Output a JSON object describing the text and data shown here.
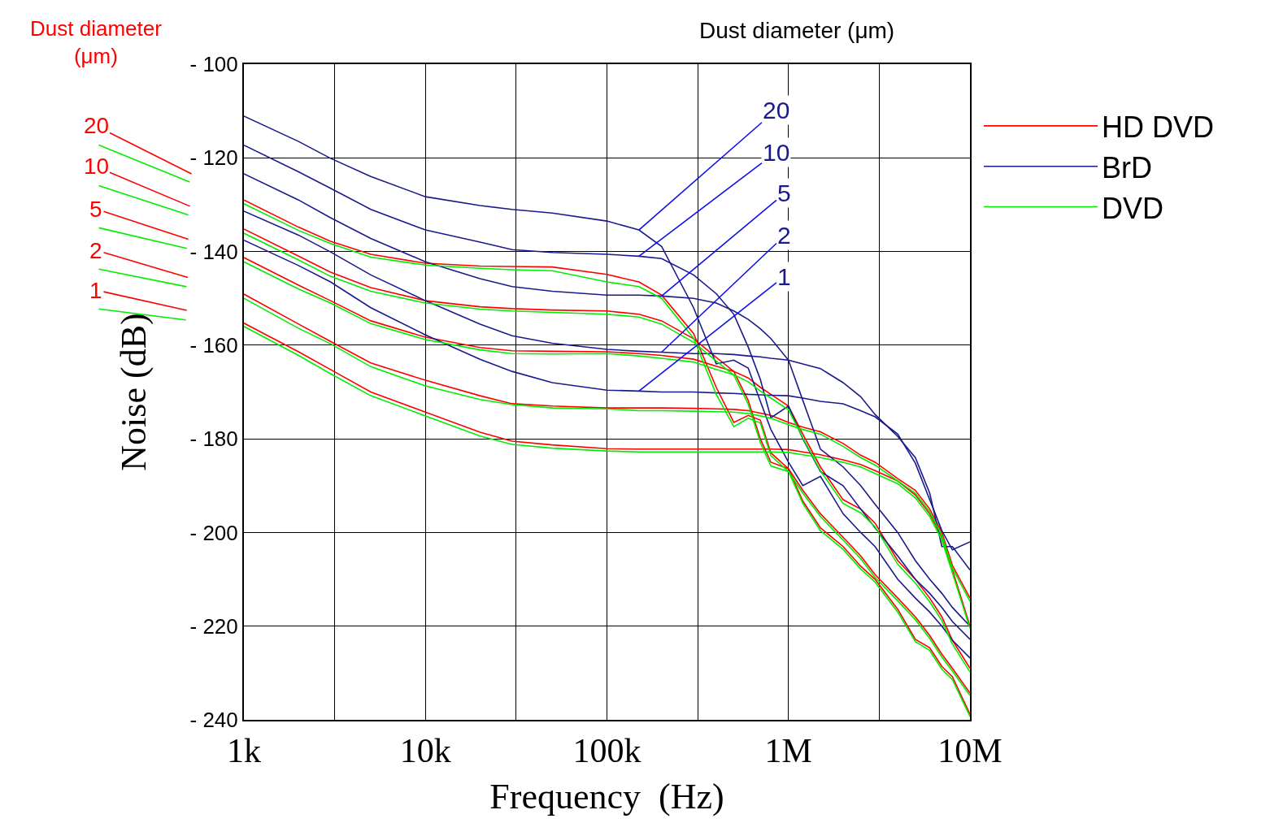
{
  "chart_data": {
    "type": "line",
    "xlabel": "Frequency  (Hz)",
    "ylabel": "Noise (dB)",
    "log": "x",
    "grid": true,
    "legend": "top right",
    "marker": "none",
    "line_style": "solid",
    "xlim": [
      1000,
      10000000
    ],
    "xticks": [
      {
        "value": 1000,
        "label": "1k"
      },
      {
        "value": 3162,
        "label": null
      },
      {
        "value": 10000,
        "label": "10k"
      },
      {
        "value": 31623,
        "label": null
      },
      {
        "value": 100000,
        "label": "100k"
      },
      {
        "value": 316228,
        "label": null
      },
      {
        "value": 1000000,
        "label": "1M"
      },
      {
        "value": 3162278,
        "label": null
      },
      {
        "value": 10000000,
        "label": "10M"
      }
    ],
    "ylim": [
      -240,
      -100
    ],
    "yticks": [
      {
        "value": -100,
        "label": "- 100"
      },
      {
        "value": -120,
        "label": "- 120"
      },
      {
        "value": -140,
        "label": "- 140"
      },
      {
        "value": -160,
        "label": "- 160"
      },
      {
        "value": -180,
        "label": "- 180"
      },
      {
        "value": -200,
        "label": "- 200"
      },
      {
        "value": -220,
        "label": "- 220"
      },
      {
        "value": -240,
        "label": "- 240"
      }
    ],
    "x": [
      1000,
      2000,
      3000,
      5000,
      10000,
      20000,
      30000,
      50000,
      100000,
      150000,
      200000,
      300000,
      400000,
      500000,
      600000,
      700000,
      800000,
      1000000,
      1200000,
      1500000,
      2000000,
      2500000,
      3000000,
      4000000,
      5000000,
      6000000,
      7000000,
      8000000,
      10000000
    ],
    "series": [
      {
        "name": "HD DVD",
        "color": "#ff0000",
        "values": [
          -129.0,
          -134.8,
          -137.8,
          -140.6,
          -142.5,
          -143.1,
          -143.2,
          -143.3,
          -144.9,
          -146.5,
          -149.3,
          -157.5,
          -169,
          -176.5,
          -175,
          -176,
          -183,
          -186.4,
          -193.3,
          -199,
          -203,
          -207.2,
          -210,
          -216.4,
          -222.8,
          -224.6,
          -228.6,
          -230.8,
          -238.8
        ]
      },
      {
        "color": "#ff0000",
        "values": [
          -135.2,
          -141.0,
          -144.4,
          -147.7,
          -150.5,
          -151.8,
          -152.2,
          -152.5,
          -152.7,
          -153.4,
          -154.8,
          -158.6,
          -162.6,
          -165.6,
          -171.8,
          -180,
          -185,
          -186.4,
          -191,
          -196,
          -201,
          -205,
          -209,
          -214,
          -218,
          -222,
          -226,
          -229,
          -234.3
        ]
      },
      {
        "color": "#ff0000",
        "values": [
          -141.3,
          -147.2,
          -150.5,
          -154.8,
          -158.3,
          -160.5,
          -161.2,
          -161.3,
          -161.4,
          -161.8,
          -162.2,
          -163,
          -164.5,
          -165.6,
          -167,
          -169,
          -170.5,
          -173,
          -179,
          -186,
          -193,
          -195,
          -198,
          -206,
          -210,
          -214,
          -218,
          -223,
          -229
        ]
      },
      {
        "color": "#ff0000",
        "values": [
          -149.1,
          -155.5,
          -159.2,
          -163.8,
          -167.5,
          -170.8,
          -172.5,
          -173.0,
          -173.4,
          -173.4,
          -173.4,
          -173.5,
          -173.6,
          -173.7,
          -174,
          -174.5,
          -175,
          -176.5,
          -177.5,
          -178.5,
          -181,
          -183.5,
          -185,
          -188.5,
          -191,
          -195,
          -200,
          -207,
          -214
        ]
      },
      {
        "color": "#ff0000",
        "values": [
          -155.3,
          -161.4,
          -165.2,
          -170,
          -174.3,
          -178.6,
          -180.5,
          -181.3,
          -182.1,
          -182.2,
          -182.2,
          -182.2,
          -182.2,
          -182.2,
          -182.2,
          -182.2,
          -182.2,
          -182.3,
          -182.8,
          -183.4,
          -184.5,
          -185.5,
          -186.8,
          -189,
          -192,
          -196,
          -201,
          -208,
          -220
        ]
      },
      {
        "name": "BrD",
        "color": "#1a1a8c",
        "values": [
          -111.1,
          -116.5,
          -120.1,
          -124,
          -128.3,
          -130.2,
          -131,
          -131.8,
          -133.5,
          -135.4,
          -138.9,
          -152,
          -164,
          -163.2,
          -164.9,
          -172,
          -178,
          -185,
          -190,
          -188,
          -196,
          -200,
          -203,
          -210,
          -214,
          -217,
          -220,
          -223,
          -226.8
        ]
      },
      {
        "color": "#1a1a8c",
        "values": [
          -117.3,
          -123,
          -126.5,
          -131,
          -135.4,
          -138,
          -139.6,
          -140.2,
          -140.6,
          -141,
          -141.5,
          -145,
          -149,
          -153.4,
          -160.4,
          -167.3,
          -175.5,
          -173,
          -180,
          -187,
          -190,
          -195,
          -199,
          -205,
          -210,
          -213,
          -216,
          -219,
          -222.8
        ]
      },
      {
        "color": "#1a1a8c",
        "values": [
          -123.4,
          -129,
          -132.8,
          -137.2,
          -142.2,
          -145.8,
          -147.5,
          -148.5,
          -149.3,
          -149.3,
          -149.5,
          -150,
          -151,
          -152.7,
          -154.5,
          -156.5,
          -158.6,
          -163.2,
          -171.8,
          -182.2,
          -186,
          -190,
          -194,
          -200,
          -206,
          -210,
          -213,
          -216,
          -220
        ]
      },
      {
        "color": "#1a1a8c",
        "values": [
          -131.4,
          -136.5,
          -140.1,
          -145,
          -150.5,
          -155.5,
          -158,
          -159.6,
          -160.9,
          -161.3,
          -161.5,
          -161.8,
          -161.8,
          -162,
          -162.3,
          -162.5,
          -162.8,
          -163.2,
          -164,
          -165,
          -168,
          -171,
          -174.8,
          -179.5,
          -184,
          -191.6,
          -203,
          -203,
          -208
        ]
      },
      {
        "color": "#1a1a8c",
        "values": [
          -137.6,
          -143,
          -146.5,
          -152,
          -157.8,
          -163,
          -165.6,
          -168,
          -169.6,
          -169.8,
          -170,
          -170,
          -170.2,
          -170.3,
          -170.5,
          -170.6,
          -170.7,
          -170.8,
          -171.3,
          -172,
          -172.5,
          -174,
          -175.3,
          -179,
          -185.2,
          -193,
          -199.6,
          -203.7,
          -202
        ]
      },
      {
        "name": "DVD",
        "color": "#00ee00",
        "values": [
          -129.8,
          -135.5,
          -138.3,
          -141.2,
          -142.9,
          -143.6,
          -143.9,
          -144.1,
          -146.5,
          -147.5,
          -150,
          -158.5,
          -170.5,
          -177.4,
          -175.6,
          -176.6,
          -183.6,
          -187,
          -193.8,
          -199.6,
          -203.6,
          -207.8,
          -210.6,
          -217,
          -223.3,
          -225.2,
          -229.2,
          -231.4,
          -239.3
        ]
      },
      {
        "color": "#00ee00",
        "values": [
          -136.1,
          -141.8,
          -145.3,
          -148.5,
          -151.0,
          -152.3,
          -152.7,
          -153.0,
          -153.4,
          -154.0,
          -155.5,
          -159.4,
          -163.4,
          -166.4,
          -172.6,
          -180.8,
          -185.8,
          -187,
          -191.6,
          -196.6,
          -201.6,
          -205.6,
          -209.6,
          -214.6,
          -218.6,
          -222.6,
          -226.6,
          -229.6,
          -234.8
        ]
      },
      {
        "color": "#00ee00",
        "values": [
          -142.2,
          -148,
          -151.0,
          -155.4,
          -158.8,
          -161,
          -161.8,
          -161.9,
          -161.8,
          -162.3,
          -162.8,
          -163.6,
          -165.2,
          -166.3,
          -167.8,
          -169.8,
          -171.3,
          -173.8,
          -179.8,
          -186.8,
          -193.8,
          -195.8,
          -198.8,
          -206.8,
          -210.8,
          -214.8,
          -218.8,
          -223.8,
          -229.8
        ]
      },
      {
        "color": "#00ee00",
        "values": [
          -150.0,
          -156.4,
          -159.7,
          -164.6,
          -168.7,
          -171.6,
          -172.7,
          -173.4,
          -173.6,
          -174,
          -174,
          -174.1,
          -174.2,
          -174.3,
          -174.6,
          -175.1,
          -175.6,
          -177,
          -178,
          -179,
          -181.6,
          -184,
          -185.6,
          -189,
          -191.6,
          -195.6,
          -200.6,
          -207.6,
          -214.7
        ]
      },
      {
        "color": "#00ee00",
        "values": [
          -156.0,
          -162.2,
          -166.1,
          -170.8,
          -175.1,
          -179.4,
          -181.2,
          -182,
          -182.6,
          -182.8,
          -182.8,
          -182.8,
          -182.8,
          -182.8,
          -182.8,
          -182.8,
          -182.8,
          -182.9,
          -183.4,
          -184,
          -185,
          -186,
          -187.4,
          -189.6,
          -192.6,
          -196.6,
          -201.6,
          -208.6,
          -220.5
        ]
      }
    ],
    "annotations": [
      "Dust diameter (μm)",
      {
        "text": "20",
        "x": 1000,
        "y": -129.0
      },
      {
        "text": "10",
        "x": 1000,
        "y": -135.2
      },
      {
        "text": "5",
        "x": 1000,
        "y": -141.3
      },
      {
        "text": "2",
        "x": 1000,
        "y": -149.1
      },
      {
        "text": "1",
        "x": 1000,
        "y": -155.3
      },
      "Dust diameter (μm)",
      {
        "text": "20",
        "x": 150000,
        "y": -135.4
      },
      {
        "text": "10",
        "x": 150000,
        "y": -141
      },
      {
        "text": "5",
        "x": 200000,
        "y": -149.5
      },
      {
        "text": "2",
        "x": 200000,
        "y": -161.5
      },
      {
        "text": "1",
        "x": 150000,
        "y": -169.8
      }
    ]
  }
}
